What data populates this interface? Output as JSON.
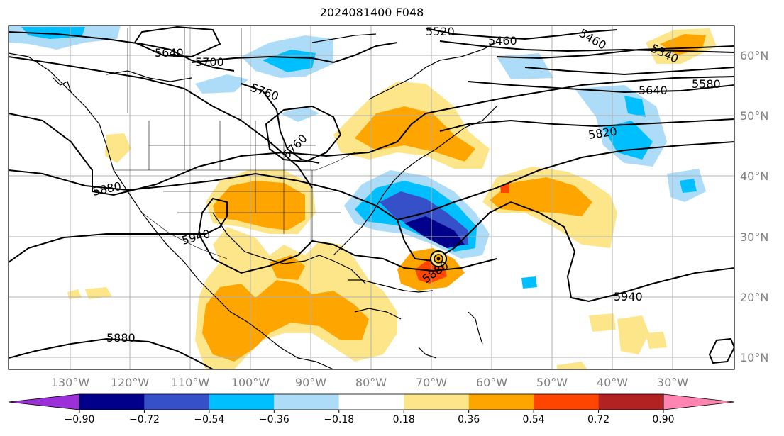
{
  "title": "2024081400 F048",
  "lat_labels": [
    "60°N",
    "50°N",
    "40°N",
    "30°N",
    "20°N",
    "10°N"
  ],
  "lon_labels": [
    "130°W",
    "120°W",
    "110°W",
    "100°W",
    "90°W",
    "80°W",
    "70°W",
    "60°W",
    "50°W",
    "40°W",
    "30°W"
  ],
  "contour_labels": [
    "5640",
    "5700",
    "5760",
    "5760",
    "5520",
    "5460",
    "5460",
    "5340",
    "5580",
    "5640",
    "5820",
    "5880",
    "5940",
    "5880",
    "5940",
    "5880"
  ],
  "colorbar": {
    "ticks": [
      "−0.90",
      "−0.72",
      "−0.54",
      "−0.36",
      "−0.18",
      "0.18",
      "0.36",
      "0.54",
      "0.72",
      "0.90"
    ],
    "colors": [
      "#9b30d8",
      "#00008b",
      "#3550c8",
      "#00bfff",
      "#acdcf8",
      "#ffffff",
      "#fde68a",
      "#ffa500",
      "#ff4500",
      "#b22222",
      "#ff85b0"
    ]
  }
}
